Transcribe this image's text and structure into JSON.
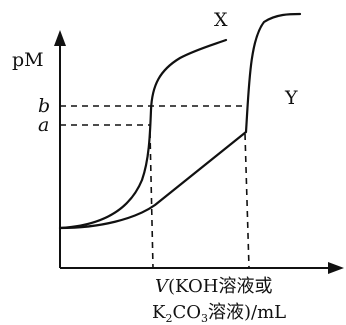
{
  "chart_data": {
    "type": "line",
    "ylabel": "pM",
    "xlabel_line1_var": "V",
    "xlabel_line1_rest": "(KOH溶液或",
    "xlabel_line2_a": "K",
    "xlabel_line2_sub1": "2",
    "xlabel_line2_b": "CO",
    "xlabel_line2_sub2": "3",
    "xlabel_line2_c": "溶液)/mL",
    "y_reference_labels": [
      {
        "id": "b",
        "label": "b"
      },
      {
        "id": "a",
        "label": "a"
      }
    ],
    "series": [
      {
        "name": "X"
      },
      {
        "name": "Y"
      }
    ],
    "grid": false,
    "legend": "none"
  }
}
